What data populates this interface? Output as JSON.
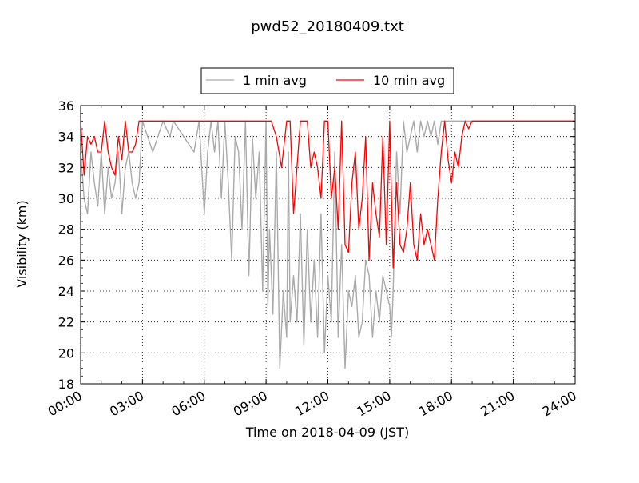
{
  "chart_data": {
    "type": "line",
    "title": "pwd52_20180409.txt",
    "xlabel": "Time on 2018-04-09 (JST)",
    "ylabel": "Visibility (km)",
    "xlim": [
      "00:00",
      "24:00"
    ],
    "ylim": [
      18,
      36
    ],
    "x_tick_labels": [
      "00:00",
      "03:00",
      "06:00",
      "09:00",
      "12:00",
      "15:00",
      "18:00",
      "21:00",
      "24:00"
    ],
    "y_ticks": [
      18,
      20,
      22,
      24,
      26,
      28,
      30,
      32,
      34,
      36
    ],
    "y_tick_labels": [
      "18",
      "20",
      "22",
      "24",
      "26",
      "28",
      "30",
      "32",
      "34",
      "36"
    ],
    "grid": true,
    "legend_position": "top-center, above plot",
    "series": [
      {
        "name": "1 min avg",
        "color": "#aaaaaa",
        "x": [
          "00:00",
          "00:10",
          "00:20",
          "00:30",
          "00:40",
          "00:50",
          "01:00",
          "01:10",
          "01:20",
          "01:30",
          "01:40",
          "01:50",
          "02:00",
          "02:10",
          "02:20",
          "02:30",
          "02:40",
          "02:50",
          "03:00",
          "03:30",
          "04:00",
          "04:20",
          "04:30",
          "05:00",
          "05:30",
          "05:45",
          "06:00",
          "06:10",
          "06:20",
          "06:30",
          "06:40",
          "06:50",
          "07:00",
          "07:10",
          "07:20",
          "07:30",
          "07:40",
          "07:50",
          "08:00",
          "08:10",
          "08:20",
          "08:30",
          "08:40",
          "08:50",
          "09:00",
          "09:05",
          "09:10",
          "09:20",
          "09:30",
          "09:40",
          "09:50",
          "10:00",
          "10:05",
          "10:10",
          "10:20",
          "10:30",
          "10:40",
          "10:50",
          "11:00",
          "11:10",
          "11:20",
          "11:30",
          "11:40",
          "11:50",
          "12:00",
          "12:10",
          "12:20",
          "12:30",
          "12:40",
          "12:50",
          "13:00",
          "13:10",
          "13:20",
          "13:30",
          "13:40",
          "13:50",
          "14:00",
          "14:10",
          "14:20",
          "14:30",
          "14:40",
          "14:50",
          "15:00",
          "15:05",
          "15:10",
          "15:20",
          "15:30",
          "15:40",
          "15:50",
          "16:00",
          "16:10",
          "16:20",
          "16:30",
          "16:40",
          "16:50",
          "17:00",
          "17:10",
          "17:20",
          "17:30",
          "17:40",
          "17:50",
          "18:00",
          "18:10",
          "18:20",
          "18:30",
          "18:40",
          "18:50",
          "19:00",
          "19:30",
          "20:00",
          "20:30",
          "21:00",
          "21:30",
          "22:00",
          "22:30",
          "23:00",
          "23:30",
          "23:55"
        ],
        "y": [
          33,
          30,
          29,
          33,
          31,
          29.5,
          33,
          29,
          32,
          30,
          31,
          33,
          29,
          32,
          33,
          31,
          30,
          31,
          35,
          33,
          35,
          34,
          35,
          34,
          33,
          35,
          29,
          33,
          35,
          33,
          35,
          30,
          35,
          31,
          26,
          34,
          33,
          28,
          35,
          25,
          34,
          30,
          33,
          24,
          35,
          23,
          28,
          22.5,
          33,
          19,
          24,
          21,
          33,
          22,
          25,
          22,
          29,
          20.5,
          28,
          22,
          26,
          21,
          29,
          20,
          25,
          22,
          33,
          21,
          27,
          19,
          24,
          23,
          25,
          21,
          22,
          26,
          25,
          21,
          24,
          22,
          25,
          24,
          23,
          21,
          24,
          33,
          29,
          35,
          33,
          34,
          35,
          33,
          35,
          34,
          35,
          34,
          35,
          33.5,
          35,
          35,
          35,
          35,
          35,
          35,
          35,
          35,
          35,
          35,
          35,
          35,
          35,
          35,
          35,
          35,
          35,
          35,
          35,
          35
        ]
      },
      {
        "name": "10 min avg",
        "color": "#ff0000",
        "x": [
          "00:00",
          "00:10",
          "00:20",
          "00:30",
          "00:40",
          "00:50",
          "01:00",
          "01:10",
          "01:20",
          "01:30",
          "01:40",
          "01:50",
          "02:00",
          "02:10",
          "02:20",
          "02:30",
          "02:40",
          "02:50",
          "03:00",
          "04:00",
          "05:00",
          "06:00",
          "07:00",
          "07:30",
          "08:00",
          "08:30",
          "09:00",
          "09:15",
          "09:30",
          "09:45",
          "10:00",
          "10:10",
          "10:20",
          "10:30",
          "10:40",
          "10:50",
          "11:00",
          "11:10",
          "11:20",
          "11:30",
          "11:40",
          "11:50",
          "12:00",
          "12:10",
          "12:20",
          "12:30",
          "12:40",
          "12:50",
          "13:00",
          "13:10",
          "13:20",
          "13:30",
          "13:40",
          "13:50",
          "14:00",
          "14:10",
          "14:20",
          "14:30",
          "14:40",
          "14:50",
          "15:00",
          "15:10",
          "15:20",
          "15:30",
          "15:40",
          "15:50",
          "16:00",
          "16:10",
          "16:20",
          "16:30",
          "16:40",
          "16:50",
          "17:00",
          "17:10",
          "17:20",
          "17:30",
          "17:40",
          "17:50",
          "18:00",
          "18:10",
          "18:20",
          "18:30",
          "18:40",
          "18:50",
          "19:00",
          "20:00",
          "21:00",
          "22:00",
          "23:00",
          "24:00"
        ],
        "y": [
          35,
          31.5,
          34,
          33.5,
          34,
          33,
          33,
          35,
          33,
          32,
          31.5,
          34,
          32.5,
          35,
          33,
          33,
          33.5,
          35,
          35,
          35,
          35,
          35,
          35,
          35,
          35,
          35,
          35,
          35,
          34,
          32,
          35,
          35,
          29,
          32,
          35,
          35,
          35,
          32,
          33,
          32,
          30,
          35,
          35,
          30,
          32,
          28,
          35,
          27,
          26.5,
          31,
          33,
          28,
          30,
          34,
          26,
          31,
          29,
          27.5,
          34,
          27,
          35,
          25.5,
          31,
          27,
          26.5,
          28,
          31,
          27,
          26,
          29,
          27,
          28,
          27,
          26,
          30,
          33,
          35,
          32.5,
          31,
          33,
          32,
          34,
          35,
          34.5,
          35,
          35,
          35,
          35,
          35,
          35
        ]
      }
    ]
  }
}
